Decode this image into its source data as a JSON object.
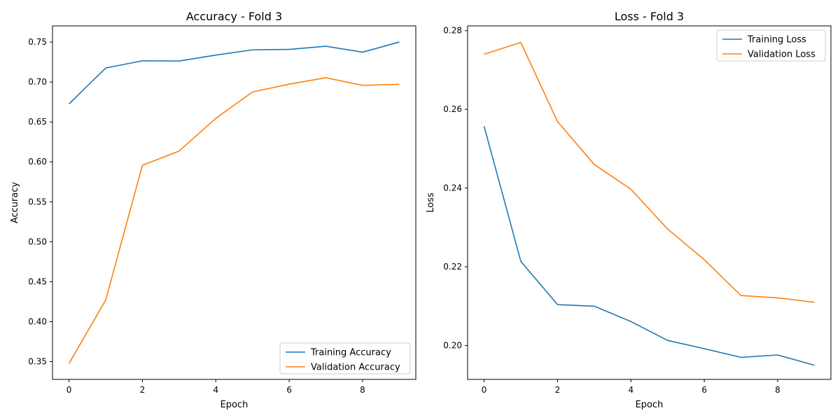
{
  "chart_data": [
    {
      "type": "line",
      "title": "Accuracy - Fold 3",
      "xlabel": "Epoch",
      "ylabel": "Accuracy",
      "x": [
        0,
        1,
        2,
        3,
        4,
        5,
        6,
        7,
        8,
        9
      ],
      "xlim": [
        -0.45,
        9.45
      ],
      "ylim": [
        0.3277,
        0.7702
      ],
      "xticks": [
        0,
        2,
        4,
        6,
        8
      ],
      "yticks": [
        0.35,
        0.4,
        0.45,
        0.5,
        0.55,
        0.6,
        0.65,
        0.7,
        0.75
      ],
      "grid": false,
      "legend_position": "lower right",
      "series": [
        {
          "name": "Training Accuracy",
          "color": "#1f77b4",
          "values": [
            0.6725,
            0.7175,
            0.7265,
            0.7262,
            0.7337,
            0.7402,
            0.7408,
            0.7447,
            0.7373,
            0.75
          ]
        },
        {
          "name": "Validation Accuracy",
          "color": "#ff7f0e",
          "values": [
            0.3476,
            0.4271,
            0.5957,
            0.6135,
            0.6545,
            0.6875,
            0.6973,
            0.7053,
            0.6958,
            0.6971
          ]
        }
      ]
    },
    {
      "type": "line",
      "title": "Loss - Fold 3",
      "xlabel": "Epoch",
      "ylabel": "Loss",
      "x": [
        0,
        1,
        2,
        3,
        4,
        5,
        6,
        7,
        8,
        9
      ],
      "xlim": [
        -0.45,
        9.45
      ],
      "ylim": [
        0.1914,
        0.2812
      ],
      "xticks": [
        0,
        2,
        4,
        6,
        8
      ],
      "yticks": [
        0.2,
        0.22,
        0.24,
        0.26,
        0.28
      ],
      "grid": false,
      "legend_position": "upper right",
      "series": [
        {
          "name": "Training Loss",
          "color": "#1f77b4",
          "values": [
            0.2557,
            0.2214,
            0.2104,
            0.21,
            0.2061,
            0.2013,
            0.1992,
            0.197,
            0.1976,
            0.195
          ]
        },
        {
          "name": "Validation Loss",
          "color": "#ff7f0e",
          "values": [
            0.274,
            0.277,
            0.2569,
            0.246,
            0.2397,
            0.2296,
            0.2218,
            0.2127,
            0.2121,
            0.211
          ]
        }
      ]
    }
  ]
}
